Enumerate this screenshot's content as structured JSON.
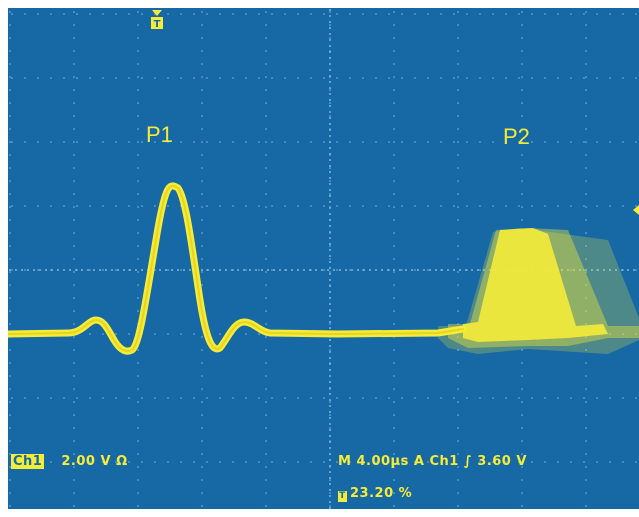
{
  "colors": {
    "screen_bg": "#1769a5",
    "trace": "#f5ec38",
    "grid": "#7fb6db"
  },
  "pulse_labels": {
    "p1": "P1",
    "p2": "P2"
  },
  "trigger_marker": "T",
  "readout": {
    "channel_badge": "Ch1",
    "channel_scale": "2.00 V Ω",
    "timebase": "M 4.00µs  A  Ch1  ∫   3.60 V",
    "trigger_position": "23.20 %"
  }
}
